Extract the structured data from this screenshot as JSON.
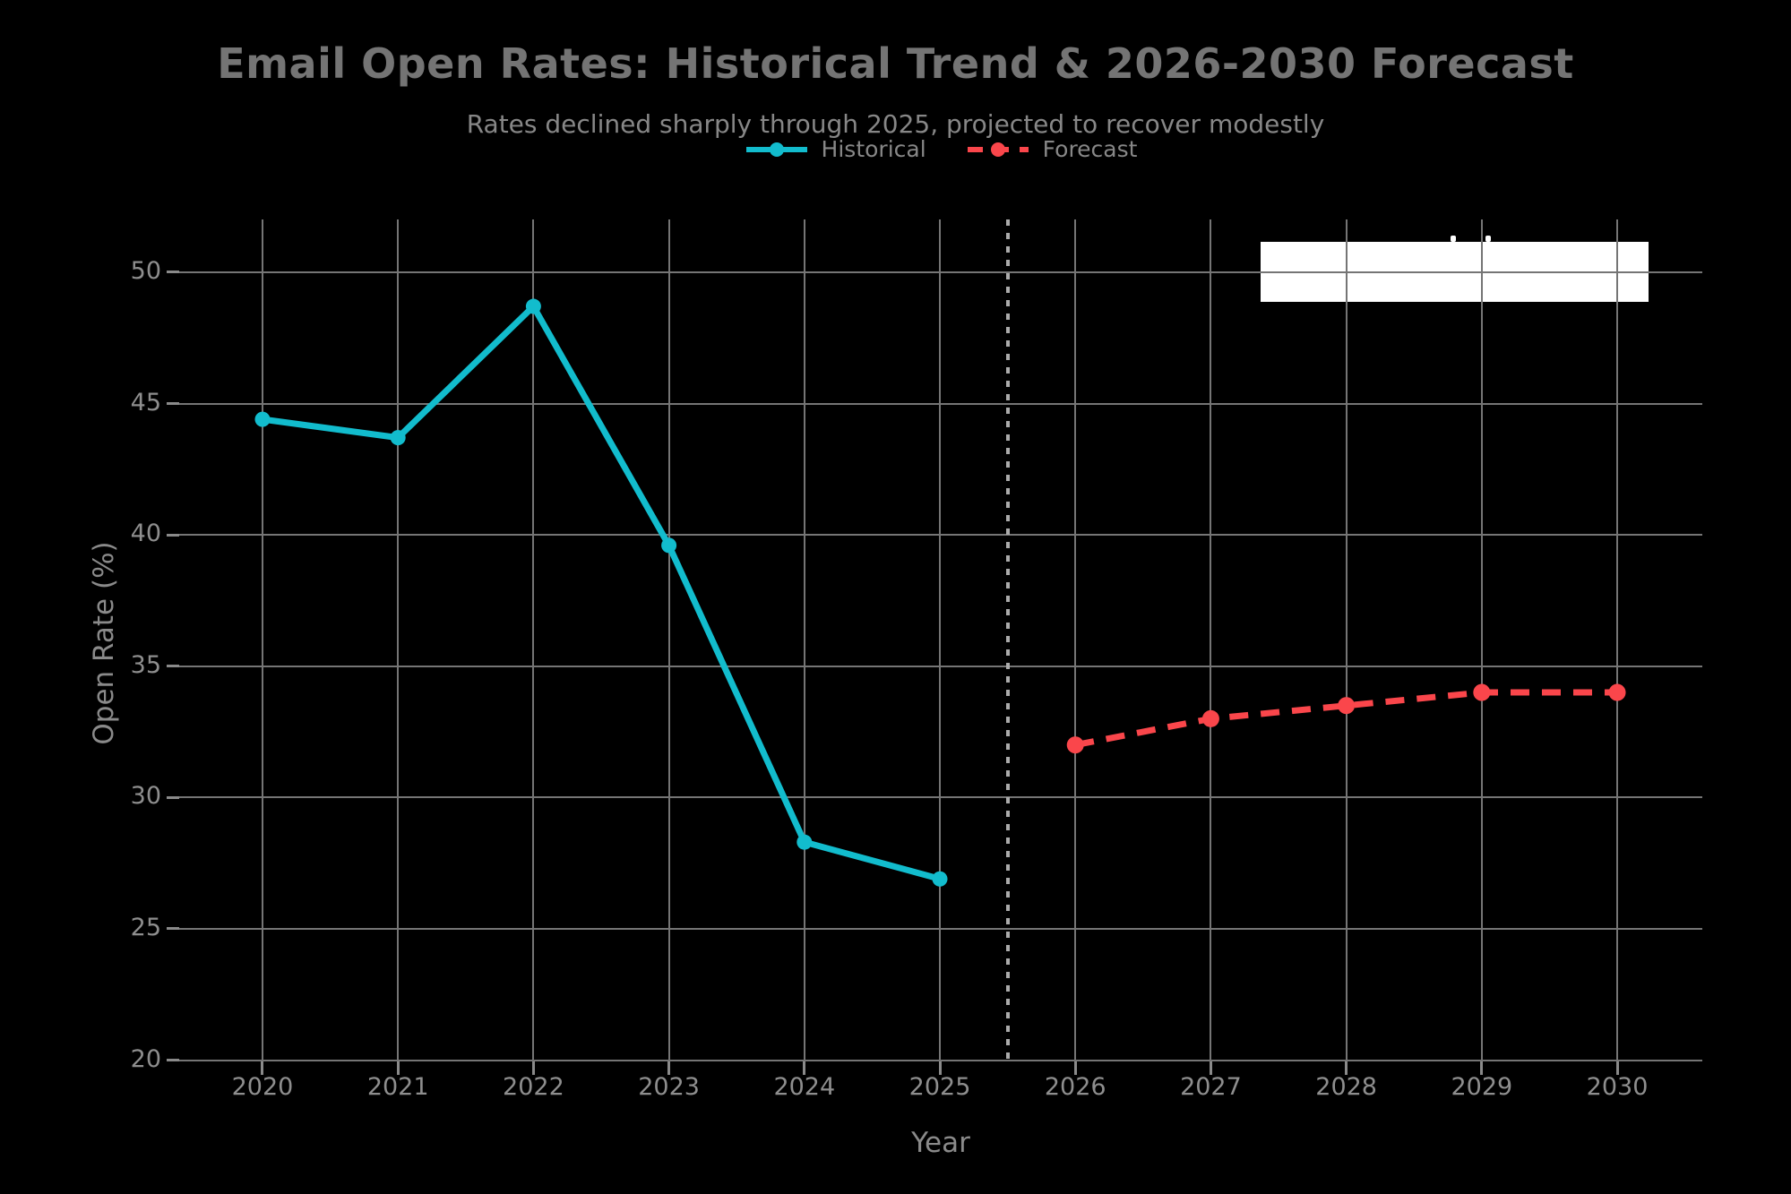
{
  "title": "Email Open Rates: Historical Trend & 2026-2030 Forecast",
  "subtitle": "Rates declined sharply through 2025, projected to recover modestly",
  "legend": [
    {
      "label": "Historical",
      "color": "#12bccd",
      "style": "solid"
    },
    {
      "label": "Forecast",
      "color": "#fa464b",
      "style": "dashed"
    }
  ],
  "x_axis": {
    "label": "Year",
    "ticks": [
      "2020",
      "2021",
      "2022",
      "2023",
      "2024",
      "2025",
      "2026",
      "2027",
      "2028",
      "2029",
      "2030"
    ]
  },
  "y_axis": {
    "label": "Open Rate (%)",
    "ticks": [
      "20",
      "25",
      "30",
      "35",
      "40",
      "45",
      "50"
    ]
  },
  "chart_data": {
    "type": "line",
    "title": "Email Open Rates: Historical Trend & 2026-2030 Forecast",
    "subtitle": "Rates declined sharply through 2025, projected to recover modestly",
    "xlabel": "Year",
    "ylabel": "Open Rate (%)",
    "xlim": [
      2019.385,
      2030.628
    ],
    "ylim": [
      19.95,
      52.01
    ],
    "grid": true,
    "legend_position": "top-center",
    "series": [
      {
        "name": "Historical",
        "color": "#12bccd",
        "line_style": "solid",
        "marker": "circle",
        "x": [
          2020,
          2021,
          2022,
          2023,
          2024,
          2025
        ],
        "y": [
          44.4,
          43.7,
          48.7,
          39.6,
          28.3,
          26.9
        ]
      },
      {
        "name": "Forecast",
        "color": "#fa464b",
        "line_style": "dashed",
        "marker": "circle",
        "x": [
          2026,
          2027,
          2028,
          2029,
          2030
        ],
        "y": [
          32.0,
          33.0,
          33.5,
          34.0,
          34.0
        ]
      }
    ],
    "separator_x": 2025.5,
    "annotation_box": {
      "x0": 2027.37,
      "x1": 2030.23,
      "y_top": 51.15,
      "y_bottom": 48.88
    },
    "annotation_specks": [
      {
        "x": 2028.79,
        "y": 51.28
      },
      {
        "x": 2029.05,
        "y": 51.28
      }
    ]
  },
  "colors": {
    "background": "#000000",
    "title": "#747474",
    "subtitle": "#878787",
    "tick_label": "#8e8e8e",
    "axis_label": "#8a8a8a",
    "grid": "#757575",
    "tick_mark": "#8a8a8a",
    "separator": "#ababab",
    "annotation": "#ffffff"
  }
}
